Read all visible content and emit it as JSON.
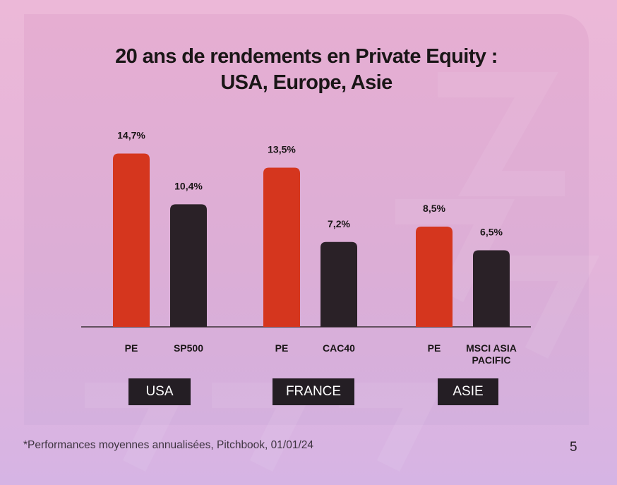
{
  "title_line1": "20 ans de rendements en Private Equity :",
  "title_line2": "USA, Europe, Asie",
  "footnote": "*Performances moyennes annualisées, Pitchbook, 01/01/24",
  "page_number": "5",
  "colors": {
    "pe": "#d5361e",
    "index": "#2a2127",
    "text": "#1a1617"
  },
  "chart_data": {
    "type": "bar",
    "title": "20 ans de rendements en Private Equity : USA, Europe, Asie",
    "groups": [
      {
        "name": "USA",
        "bars": [
          {
            "label": "PE",
            "value": 14.7,
            "value_label": "14,7%",
            "kind": "pe"
          },
          {
            "label": "SP500",
            "value": 10.4,
            "value_label": "10,4%",
            "kind": "index"
          }
        ]
      },
      {
        "name": "FRANCE",
        "bars": [
          {
            "label": "PE",
            "value": 13.5,
            "value_label": "13,5%",
            "kind": "pe"
          },
          {
            "label": "CAC40",
            "value": 7.2,
            "value_label": "7,2%",
            "kind": "index"
          }
        ]
      },
      {
        "name": "ASIE",
        "bars": [
          {
            "label": "PE",
            "value": 8.5,
            "value_label": "8,5%",
            "kind": "pe"
          },
          {
            "label": "MSCI ASIA PACIFIC",
            "value": 6.5,
            "value_label": "6,5%",
            "kind": "index"
          }
        ]
      }
    ],
    "ylim": [
      0,
      15
    ],
    "grid": false,
    "xlabel": "",
    "ylabel": ""
  }
}
